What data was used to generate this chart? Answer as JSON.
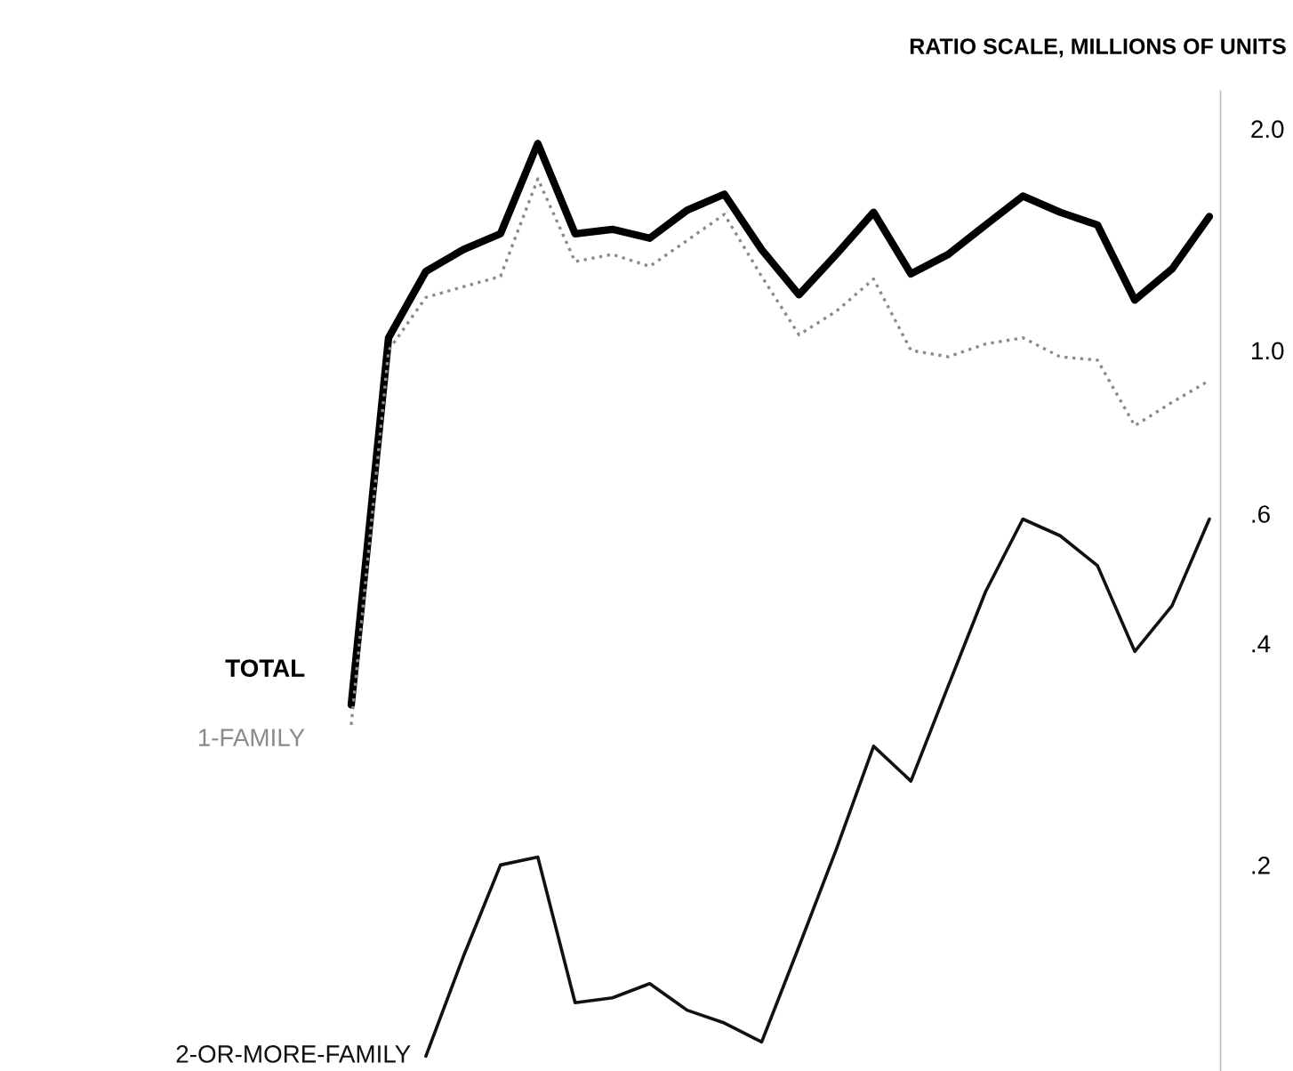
{
  "chart_data": {
    "type": "line",
    "title": "RATIO SCALE, MILLIONS OF UNITS",
    "categories": [
      null,
      null,
      null,
      null,
      null,
      null,
      null,
      null,
      null,
      null,
      null,
      null,
      null,
      null,
      null,
      null,
      null,
      null,
      null,
      null,
      null,
      null,
      null,
      null
    ],
    "log": "y",
    "ylim": [
      0.105,
      2.25
    ],
    "yticks": [
      {
        "value": 2.0,
        "label": "2.0"
      },
      {
        "value": 1.0,
        "label": "1.0"
      },
      {
        "value": 0.6,
        "label": ".6"
      },
      {
        "value": 0.4,
        "label": ".4"
      },
      {
        "value": 0.2,
        "label": ".2"
      }
    ],
    "grid": false,
    "legend": false,
    "marker": "none",
    "series": [
      {
        "name": "TOTAL",
        "color": "#000000",
        "line_style": "solid",
        "values": [
          0.33,
          1.04,
          1.28,
          1.37,
          1.44,
          1.91,
          1.44,
          1.46,
          1.42,
          1.55,
          1.63,
          1.37,
          1.19,
          1.35,
          1.54,
          1.27,
          1.35,
          1.48,
          1.62,
          1.54,
          1.48,
          1.17,
          1.29,
          1.52
        ]
      },
      {
        "name": "1-FAMILY",
        "color": "#8a8a8a",
        "line_style": "dotted",
        "values": [
          0.31,
          1.0,
          1.18,
          1.22,
          1.26,
          1.71,
          1.32,
          1.35,
          1.3,
          1.41,
          1.53,
          1.26,
          1.05,
          1.13,
          1.25,
          1.0,
          0.98,
          1.02,
          1.04,
          0.98,
          0.97,
          0.79,
          0.85,
          0.91
        ]
      },
      {
        "name": "2-OR-MORE-FAMILY",
        "color": "#111111",
        "line_style": "solid",
        "values": [
          null,
          null,
          0.11,
          0.15,
          0.2,
          0.205,
          0.13,
          0.132,
          0.138,
          0.127,
          0.122,
          0.115,
          0.155,
          0.21,
          0.29,
          0.26,
          0.35,
          0.47,
          0.59,
          0.56,
          0.51,
          0.39,
          0.45,
          0.59
        ]
      }
    ]
  }
}
